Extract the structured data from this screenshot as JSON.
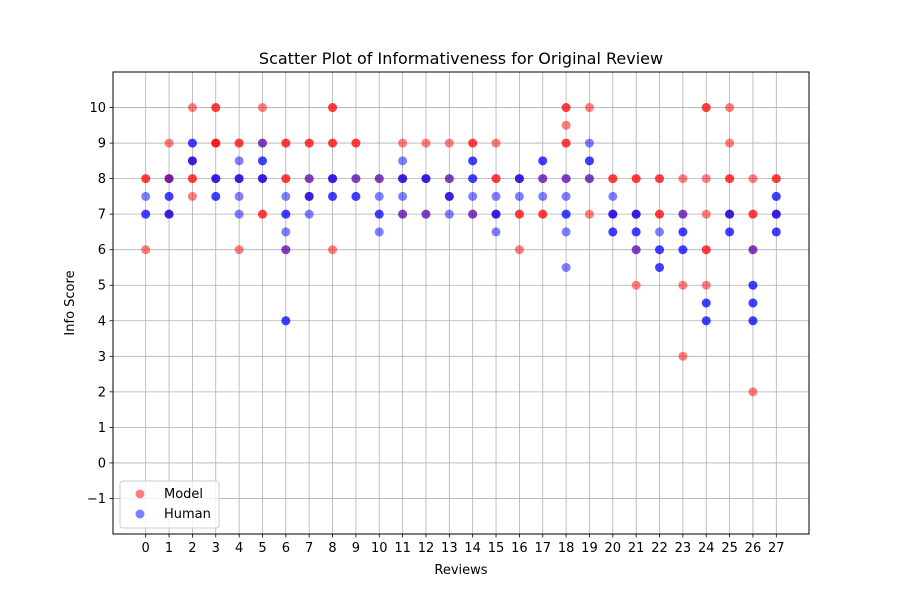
{
  "chart_data": {
    "type": "scatter",
    "title": "Scatter Plot of Informativeness for Original Review",
    "xlabel": "Reviews",
    "ylabel": "Info Score",
    "x_ticks": [
      0,
      1,
      2,
      3,
      4,
      5,
      6,
      7,
      8,
      9,
      10,
      11,
      12,
      13,
      14,
      15,
      16,
      17,
      18,
      19,
      20,
      21,
      22,
      23,
      24,
      25,
      26,
      27
    ],
    "y_ticks": [
      -1,
      0,
      1,
      2,
      3,
      4,
      5,
      6,
      7,
      8,
      9,
      10
    ],
    "xlim": [
      -1.4,
      28.4
    ],
    "ylim": [
      -2,
      11
    ],
    "grid": true,
    "legend_position": "lower-left",
    "series": [
      {
        "name": "Model",
        "color": "#ff0000",
        "alpha": 0.5,
        "points": [
          [
            0,
            8
          ],
          [
            0,
            8
          ],
          [
            0,
            6
          ],
          [
            1,
            9
          ],
          [
            1,
            8
          ],
          [
            1,
            8
          ],
          [
            1,
            7
          ],
          [
            2,
            10
          ],
          [
            2,
            8
          ],
          [
            2,
            8
          ],
          [
            2,
            7.5
          ],
          [
            2,
            8.5
          ],
          [
            3,
            10
          ],
          [
            3,
            10
          ],
          [
            3,
            9
          ],
          [
            3,
            9
          ],
          [
            3,
            9
          ],
          [
            3,
            8
          ],
          [
            4,
            9
          ],
          [
            4,
            9
          ],
          [
            4,
            8
          ],
          [
            4,
            6
          ],
          [
            5,
            10
          ],
          [
            5,
            9
          ],
          [
            5,
            8
          ],
          [
            5,
            7
          ],
          [
            5,
            7
          ],
          [
            6,
            9
          ],
          [
            6,
            9
          ],
          [
            6,
            8
          ],
          [
            6,
            8
          ],
          [
            6,
            6
          ],
          [
            7,
            9
          ],
          [
            7,
            9
          ],
          [
            7,
            8
          ],
          [
            7,
            7.5
          ],
          [
            8,
            10
          ],
          [
            8,
            10
          ],
          [
            8,
            9
          ],
          [
            8,
            9
          ],
          [
            8,
            8
          ],
          [
            8,
            6
          ],
          [
            9,
            9
          ],
          [
            9,
            9
          ],
          [
            9,
            8
          ],
          [
            10,
            8
          ],
          [
            11,
            9
          ],
          [
            11,
            8
          ],
          [
            11,
            7
          ],
          [
            12,
            9
          ],
          [
            12,
            8
          ],
          [
            12,
            7
          ],
          [
            13,
            9
          ],
          [
            13,
            8
          ],
          [
            13,
            7.5
          ],
          [
            14,
            9
          ],
          [
            14,
            9
          ],
          [
            14,
            7
          ],
          [
            15,
            9
          ],
          [
            15,
            8
          ],
          [
            15,
            8
          ],
          [
            15,
            7
          ],
          [
            16,
            8
          ],
          [
            16,
            7
          ],
          [
            16,
            7
          ],
          [
            16,
            6
          ],
          [
            17,
            8
          ],
          [
            17,
            7
          ],
          [
            17,
            7
          ],
          [
            18,
            10
          ],
          [
            18,
            10
          ],
          [
            18,
            9.5
          ],
          [
            18,
            9
          ],
          [
            18,
            9
          ],
          [
            18,
            8
          ],
          [
            19,
            10
          ],
          [
            19,
            8
          ],
          [
            19,
            7
          ],
          [
            20,
            8
          ],
          [
            20,
            8
          ],
          [
            20,
            7
          ],
          [
            21,
            8
          ],
          [
            21,
            8
          ],
          [
            21,
            7
          ],
          [
            21,
            6
          ],
          [
            21,
            5
          ],
          [
            22,
            8
          ],
          [
            22,
            8
          ],
          [
            22,
            7
          ],
          [
            22,
            7
          ],
          [
            23,
            8
          ],
          [
            23,
            7
          ],
          [
            23,
            5
          ],
          [
            23,
            3
          ],
          [
            24,
            10
          ],
          [
            24,
            10
          ],
          [
            24,
            8
          ],
          [
            24,
            7
          ],
          [
            24,
            6
          ],
          [
            24,
            6
          ],
          [
            24,
            5
          ],
          [
            25,
            10
          ],
          [
            25,
            9
          ],
          [
            25,
            8
          ],
          [
            25,
            8
          ],
          [
            25,
            7
          ],
          [
            26,
            8
          ],
          [
            26,
            7
          ],
          [
            26,
            7
          ],
          [
            26,
            6
          ],
          [
            26,
            2
          ],
          [
            27,
            8
          ],
          [
            27,
            8
          ],
          [
            27,
            7
          ]
        ]
      },
      {
        "name": "Human",
        "color": "#0000ff",
        "alpha": 0.5,
        "points": [
          [
            0,
            7.5
          ],
          [
            0,
            7
          ],
          [
            0,
            7
          ],
          [
            1,
            8
          ],
          [
            1,
            7.5
          ],
          [
            1,
            7.5
          ],
          [
            1,
            7
          ],
          [
            1,
            7
          ],
          [
            2,
            9
          ],
          [
            2,
            9
          ],
          [
            2,
            8.5
          ],
          [
            2,
            8.5
          ],
          [
            3,
            8
          ],
          [
            3,
            8
          ],
          [
            3,
            7.5
          ],
          [
            3,
            7.5
          ],
          [
            4,
            8.5
          ],
          [
            4,
            8
          ],
          [
            4,
            8
          ],
          [
            4,
            7.5
          ],
          [
            4,
            7
          ],
          [
            5,
            9
          ],
          [
            5,
            8.5
          ],
          [
            5,
            8.5
          ],
          [
            5,
            8
          ],
          [
            5,
            8
          ],
          [
            6,
            7.5
          ],
          [
            6,
            7
          ],
          [
            6,
            7
          ],
          [
            6,
            6.5
          ],
          [
            6,
            6
          ],
          [
            6,
            4
          ],
          [
            6,
            4
          ],
          [
            7,
            8
          ],
          [
            7,
            7.5
          ],
          [
            7,
            7.5
          ],
          [
            7,
            7
          ],
          [
            8,
            8
          ],
          [
            8,
            8
          ],
          [
            8,
            7.5
          ],
          [
            8,
            7.5
          ],
          [
            9,
            8
          ],
          [
            9,
            7.5
          ],
          [
            9,
            7.5
          ],
          [
            10,
            8
          ],
          [
            10,
            7.5
          ],
          [
            10,
            7
          ],
          [
            10,
            7
          ],
          [
            10,
            6.5
          ],
          [
            11,
            8.5
          ],
          [
            11,
            8
          ],
          [
            11,
            8
          ],
          [
            11,
            7.5
          ],
          [
            11,
            7
          ],
          [
            12,
            8
          ],
          [
            12,
            8
          ],
          [
            12,
            7
          ],
          [
            13,
            8
          ],
          [
            13,
            7.5
          ],
          [
            13,
            7.5
          ],
          [
            13,
            7
          ],
          [
            14,
            8.5
          ],
          [
            14,
            8.5
          ],
          [
            14,
            8
          ],
          [
            14,
            8
          ],
          [
            14,
            7.5
          ],
          [
            14,
            7
          ],
          [
            15,
            7.5
          ],
          [
            15,
            7
          ],
          [
            15,
            7
          ],
          [
            15,
            6.5
          ],
          [
            16,
            8
          ],
          [
            16,
            8
          ],
          [
            16,
            7.5
          ],
          [
            17,
            8.5
          ],
          [
            17,
            8.5
          ],
          [
            17,
            8
          ],
          [
            17,
            7.5
          ],
          [
            18,
            8
          ],
          [
            18,
            7.5
          ],
          [
            18,
            7
          ],
          [
            18,
            7
          ],
          [
            18,
            6.5
          ],
          [
            18,
            5.5
          ],
          [
            19,
            9
          ],
          [
            19,
            8.5
          ],
          [
            19,
            8.5
          ],
          [
            19,
            8
          ],
          [
            20,
            7.5
          ],
          [
            20,
            7
          ],
          [
            20,
            7
          ],
          [
            20,
            6.5
          ],
          [
            20,
            6.5
          ],
          [
            21,
            7
          ],
          [
            21,
            7
          ],
          [
            21,
            6.5
          ],
          [
            21,
            6.5
          ],
          [
            21,
            6
          ],
          [
            22,
            6.5
          ],
          [
            22,
            6
          ],
          [
            22,
            6
          ],
          [
            22,
            5.5
          ],
          [
            22,
            5.5
          ],
          [
            23,
            7
          ],
          [
            23,
            6.5
          ],
          [
            23,
            6.5
          ],
          [
            23,
            6
          ],
          [
            23,
            6
          ],
          [
            24,
            4.5
          ],
          [
            24,
            4.5
          ],
          [
            24,
            4
          ],
          [
            24,
            4
          ],
          [
            25,
            7
          ],
          [
            25,
            7
          ],
          [
            25,
            6.5
          ],
          [
            25,
            6.5
          ],
          [
            26,
            6
          ],
          [
            26,
            5
          ],
          [
            26,
            5
          ],
          [
            26,
            4.5
          ],
          [
            26,
            4.5
          ],
          [
            26,
            4
          ],
          [
            26,
            4
          ],
          [
            27,
            7.5
          ],
          [
            27,
            7.5
          ],
          [
            27,
            7
          ],
          [
            27,
            7
          ],
          [
            27,
            6.5
          ],
          [
            27,
            6.5
          ]
        ]
      }
    ]
  }
}
